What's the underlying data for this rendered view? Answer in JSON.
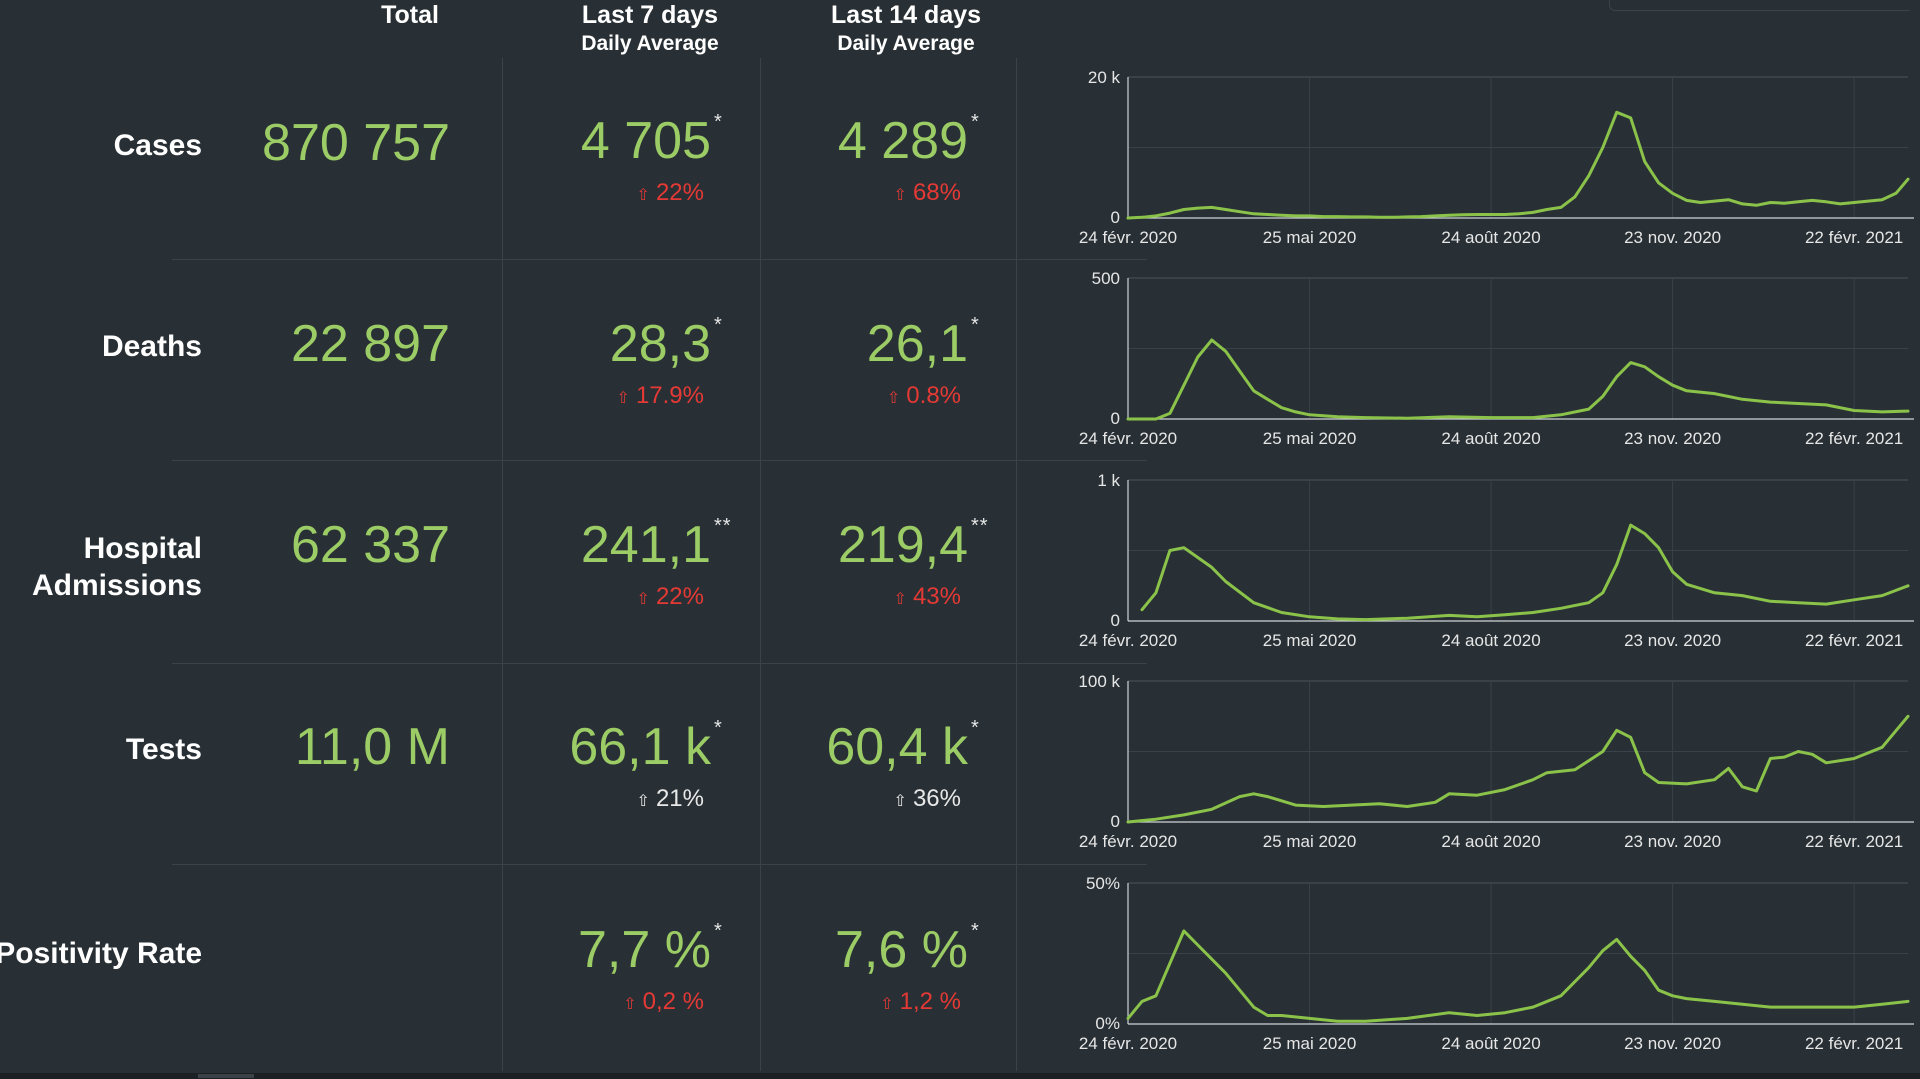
{
  "headers": {
    "total": "Total",
    "last7": "Last 7 days",
    "last7_sub": "Daily Average",
    "last14": "Last 14 days",
    "last14_sub": "Daily Average"
  },
  "rows": [
    {
      "label": "Cases",
      "total": "870 757",
      "avg7": "4 705",
      "avg7_mark": "*",
      "chg7": "22%",
      "chg7_dir": "up",
      "avg14": "4 289",
      "avg14_mark": "*",
      "chg14": "68%",
      "chg14_dir": "up"
    },
    {
      "label": "Deaths",
      "total": "22 897",
      "avg7": "28,3",
      "avg7_mark": "*",
      "chg7": "17.9%",
      "chg7_dir": "up",
      "avg14": "26,1",
      "avg14_mark": "*",
      "chg14": "0.8%",
      "chg14_dir": "up"
    },
    {
      "label_line1": "Hospital",
      "label_line2": "Admissions",
      "total": "62 337",
      "avg7": "241,1",
      "avg7_mark": "**",
      "chg7": "22%",
      "chg7_dir": "up",
      "avg14": "219,4",
      "avg14_mark": "**",
      "chg14": "43%",
      "chg14_dir": "up"
    },
    {
      "label": "Tests",
      "total": "11,0 M",
      "avg7": "66,1 k",
      "avg7_mark": "*",
      "chg7": "21%",
      "chg7_dir": "neutral",
      "avg14": "60,4 k",
      "avg14_mark": "*",
      "chg14": "36%",
      "chg14_dir": "neutral"
    },
    {
      "label": "Positivity Rate",
      "total": "",
      "avg7": "7,7 %",
      "avg7_mark": "*",
      "chg7": "0,2 %",
      "chg7_dir": "up",
      "avg14": "7,6 %",
      "avg14_mark": "*",
      "chg14": "1,2 %",
      "chg14_dir": "up"
    }
  ],
  "colors": {
    "background": "#283035",
    "value_green": "#9ccc65",
    "increase_red": "#e53935",
    "line_green": "#8bc34a",
    "grid": "#4a545b"
  },
  "icons": {
    "increase": "arrow-up-icon"
  },
  "chart_data": [
    {
      "type": "line",
      "title": "Cases",
      "x_tick_labels": [
        "24 févr. 2020",
        "25 mai 2020",
        "24 août 2020",
        "23 nov. 2020",
        "22 févr. 2021"
      ],
      "y_tick_labels": [
        "0",
        "20 k"
      ],
      "ylim": [
        0,
        20000
      ],
      "x_range": [
        "2020-02-24",
        "2021-03-21"
      ],
      "grid": true,
      "series": [
        {
          "x": [
            "2020-02-24",
            "2020-03-02",
            "2020-03-09",
            "2020-03-16",
            "2020-03-23",
            "2020-03-30",
            "2020-04-06",
            "2020-04-13",
            "2020-04-20",
            "2020-04-27",
            "2020-05-04",
            "2020-05-11",
            "2020-05-18",
            "2020-05-25",
            "2020-06-01",
            "2020-06-08",
            "2020-06-15",
            "2020-06-22",
            "2020-06-29",
            "2020-07-06",
            "2020-07-13",
            "2020-07-20",
            "2020-07-27",
            "2020-08-03",
            "2020-08-10",
            "2020-08-17",
            "2020-08-24",
            "2020-08-31",
            "2020-09-07",
            "2020-09-14",
            "2020-09-21",
            "2020-09-28",
            "2020-10-05",
            "2020-10-12",
            "2020-10-19",
            "2020-10-26",
            "2020-11-02",
            "2020-11-09",
            "2020-11-16",
            "2020-11-23",
            "2020-11-30",
            "2020-12-07",
            "2020-12-14",
            "2020-12-21",
            "2020-12-28",
            "2021-01-04",
            "2021-01-11",
            "2021-01-18",
            "2021-01-25",
            "2021-02-01",
            "2021-02-08",
            "2021-02-15",
            "2021-02-22",
            "2021-03-01",
            "2021-03-08",
            "2021-03-15",
            "2021-03-21"
          ],
          "values": [
            0,
            100,
            300,
            700,
            1200,
            1400,
            1500,
            1200,
            900,
            600,
            500,
            400,
            300,
            300,
            200,
            200,
            150,
            150,
            100,
            100,
            150,
            200,
            300,
            400,
            450,
            500,
            500,
            500,
            600,
            800,
            1200,
            1500,
            3000,
            6000,
            10000,
            15000,
            14200,
            8000,
            5000,
            3500,
            2500,
            2200,
            2400,
            2600,
            2000,
            1800,
            2200,
            2100,
            2300,
            2500,
            2300,
            2000,
            2200,
            2400,
            2600,
            3500,
            5500
          ]
        }
      ]
    },
    {
      "type": "line",
      "title": "Deaths",
      "x_tick_labels": [
        "24 févr. 2020",
        "25 mai 2020",
        "24 août 2020",
        "23 nov. 2020",
        "22 févr. 2021"
      ],
      "y_tick_labels": [
        "0",
        "500"
      ],
      "ylim": [
        0,
        500
      ],
      "x_range": [
        "2020-02-24",
        "2021-03-21"
      ],
      "grid": true,
      "series": [
        {
          "x": [
            "2020-02-24",
            "2020-03-09",
            "2020-03-16",
            "2020-03-23",
            "2020-03-30",
            "2020-04-06",
            "2020-04-13",
            "2020-04-20",
            "2020-04-27",
            "2020-05-04",
            "2020-05-11",
            "2020-05-18",
            "2020-05-25",
            "2020-06-08",
            "2020-06-22",
            "2020-07-13",
            "2020-08-03",
            "2020-08-24",
            "2020-09-14",
            "2020-09-28",
            "2020-10-12",
            "2020-10-19",
            "2020-10-26",
            "2020-11-02",
            "2020-11-09",
            "2020-11-16",
            "2020-11-23",
            "2020-11-30",
            "2020-12-14",
            "2020-12-28",
            "2021-01-11",
            "2021-01-25",
            "2021-02-08",
            "2021-02-22",
            "2021-03-08",
            "2021-03-21"
          ],
          "values": [
            0,
            0,
            20,
            120,
            220,
            280,
            240,
            170,
            100,
            70,
            40,
            25,
            15,
            8,
            5,
            3,
            8,
            5,
            5,
            15,
            35,
            80,
            150,
            200,
            185,
            150,
            120,
            100,
            90,
            70,
            60,
            55,
            50,
            30,
            25,
            28
          ]
        }
      ]
    },
    {
      "type": "line",
      "title": "Hospital Admissions",
      "x_tick_labels": [
        "24 févr. 2020",
        "25 mai 2020",
        "24 août 2020",
        "23 nov. 2020",
        "22 févr. 2021"
      ],
      "y_tick_labels": [
        "0",
        "1 k"
      ],
      "ylim": [
        0,
        1000
      ],
      "x_range": [
        "2020-02-24",
        "2021-03-21"
      ],
      "grid": true,
      "series": [
        {
          "x": [
            "2020-03-02",
            "2020-03-09",
            "2020-03-16",
            "2020-03-23",
            "2020-03-30",
            "2020-04-06",
            "2020-04-13",
            "2020-04-27",
            "2020-05-11",
            "2020-05-25",
            "2020-06-08",
            "2020-06-22",
            "2020-07-13",
            "2020-08-03",
            "2020-08-17",
            "2020-08-31",
            "2020-09-14",
            "2020-09-28",
            "2020-10-12",
            "2020-10-19",
            "2020-10-26",
            "2020-11-02",
            "2020-11-09",
            "2020-11-16",
            "2020-11-23",
            "2020-11-30",
            "2020-12-14",
            "2020-12-28",
            "2021-01-11",
            "2021-01-25",
            "2021-02-08",
            "2021-02-22",
            "2021-03-08",
            "2021-03-21"
          ],
          "values": [
            80,
            200,
            500,
            520,
            450,
            380,
            280,
            130,
            60,
            30,
            15,
            10,
            20,
            40,
            30,
            45,
            60,
            90,
            130,
            200,
            400,
            680,
            620,
            520,
            350,
            260,
            200,
            180,
            140,
            130,
            120,
            150,
            180,
            250
          ]
        }
      ]
    },
    {
      "type": "line",
      "title": "Tests",
      "x_tick_labels": [
        "24 févr. 2020",
        "25 mai 2020",
        "24 août 2020",
        "23 nov. 2020",
        "22 févr. 2021"
      ],
      "y_tick_labels": [
        "0",
        "100 k"
      ],
      "ylim": [
        0,
        100000
      ],
      "x_range": [
        "2020-02-24",
        "2021-03-21"
      ],
      "grid": true,
      "series": [
        {
          "x": [
            "2020-02-24",
            "2020-03-09",
            "2020-03-23",
            "2020-04-06",
            "2020-04-20",
            "2020-04-27",
            "2020-05-04",
            "2020-05-18",
            "2020-06-01",
            "2020-06-15",
            "2020-06-29",
            "2020-07-13",
            "2020-07-27",
            "2020-08-03",
            "2020-08-17",
            "2020-08-31",
            "2020-09-14",
            "2020-09-21",
            "2020-10-05",
            "2020-10-19",
            "2020-10-26",
            "2020-11-02",
            "2020-11-09",
            "2020-11-16",
            "2020-11-30",
            "2020-12-14",
            "2020-12-21",
            "2020-12-28",
            "2021-01-04",
            "2021-01-11",
            "2021-01-18",
            "2021-01-25",
            "2021-02-01",
            "2021-02-08",
            "2021-02-22",
            "2021-03-08",
            "2021-03-21"
          ],
          "values": [
            0,
            2000,
            5000,
            9000,
            18000,
            20000,
            18000,
            12000,
            11000,
            12000,
            13000,
            11000,
            14000,
            20000,
            19000,
            23000,
            30000,
            35000,
            37000,
            50000,
            65000,
            60000,
            35000,
            28000,
            27000,
            30000,
            38000,
            25000,
            22000,
            45000,
            46000,
            50000,
            48000,
            42000,
            45000,
            53000,
            75000
          ]
        }
      ]
    },
    {
      "type": "line",
      "title": "Positivity Rate",
      "x_tick_labels": [
        "24 févr. 2020",
        "25 mai 2020",
        "24 août 2020",
        "23 nov. 2020",
        "22 févr. 2021"
      ],
      "y_tick_labels": [
        "0%",
        "50%"
      ],
      "ylim": [
        0,
        50
      ],
      "x_range": [
        "2020-02-24",
        "2021-03-21"
      ],
      "grid": true,
      "series": [
        {
          "x": [
            "2020-02-24",
            "2020-03-02",
            "2020-03-09",
            "2020-03-23",
            "2020-03-30",
            "2020-04-13",
            "2020-04-27",
            "2020-05-04",
            "2020-05-11",
            "2020-05-25",
            "2020-06-08",
            "2020-06-22",
            "2020-07-13",
            "2020-08-03",
            "2020-08-17",
            "2020-08-31",
            "2020-09-14",
            "2020-09-28",
            "2020-10-12",
            "2020-10-19",
            "2020-10-26",
            "2020-11-02",
            "2020-11-09",
            "2020-11-16",
            "2020-11-23",
            "2020-11-30",
            "2020-12-14",
            "2020-12-28",
            "2021-01-11",
            "2021-01-25",
            "2021-02-08",
            "2021-02-22",
            "2021-03-08",
            "2021-03-21"
          ],
          "values": [
            2,
            8,
            10,
            33,
            28,
            18,
            6,
            3,
            3,
            2,
            1,
            1,
            2,
            4,
            3,
            4,
            6,
            10,
            20,
            26,
            30,
            24,
            19,
            12,
            10,
            9,
            8,
            7,
            6,
            6,
            6,
            6,
            7,
            8
          ]
        }
      ]
    }
  ]
}
